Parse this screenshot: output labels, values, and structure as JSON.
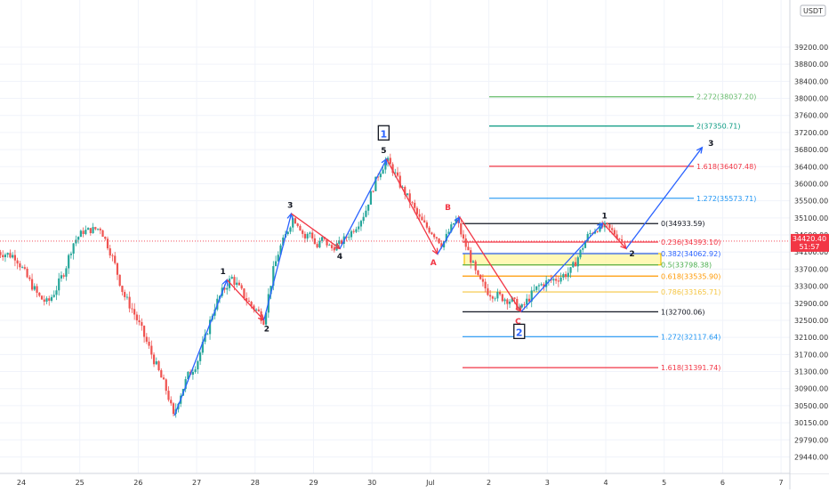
{
  "chart_data": {
    "type": "candlestick",
    "instrument_quote": "USDT",
    "x_tick_labels": [
      "24",
      "25",
      "26",
      "27",
      "28",
      "29",
      "30",
      "Jul",
      "2",
      "3",
      "4",
      "5",
      "6",
      "7"
    ],
    "y_tick_labels": [
      39200,
      38800,
      38400,
      38000,
      37600,
      37200,
      36800,
      36400,
      36000,
      35500,
      35100,
      34600,
      34100,
      33700,
      33300,
      32900,
      32500,
      32100,
      31700,
      31300,
      30900,
      30500,
      30150,
      29790,
      29440
    ],
    "y_tick_display": [
      "39200.00",
      "38800.00",
      "38400.00",
      "38000.00",
      "37600.00",
      "37200.00",
      "36800.00",
      "36400.00",
      "36000.00",
      "35500.00",
      "35100.00",
      "34600.00",
      "34100.00",
      "33700.00",
      "33300.00",
      "32900.00",
      "32500.00",
      "32100.00",
      "31700.00",
      "31300.00",
      "30900.00",
      "30500.00",
      "30150.00",
      "29790.00",
      "29440.00"
    ],
    "ylim": [
      29150,
      39280
    ],
    "xlim": [
      23.6,
      31.8
    ],
    "current_price": {
      "value": 34420.4,
      "label": "34420.40",
      "countdown": "51:57",
      "color": "#f23645"
    },
    "candle_colors": {
      "up": "#26a69a",
      "down": "#ef5350"
    },
    "price_path": [
      [
        23.6,
        34100
      ],
      [
        23.9,
        34000
      ],
      [
        24.1,
        33500
      ],
      [
        24.3,
        33050
      ],
      [
        24.45,
        32900
      ],
      [
        24.6,
        33250
      ],
      [
        24.75,
        33700
      ],
      [
        24.9,
        34400
      ],
      [
        25.05,
        34700
      ],
      [
        25.2,
        34750
      ],
      [
        25.35,
        34800
      ],
      [
        25.5,
        34200
      ],
      [
        25.6,
        33800
      ],
      [
        25.75,
        33100
      ],
      [
        25.9,
        32750
      ],
      [
        26.05,
        32300
      ],
      [
        26.2,
        31800
      ],
      [
        26.35,
        31300
      ],
      [
        26.5,
        30800
      ],
      [
        26.6,
        30250
      ],
      [
        26.7,
        30700
      ],
      [
        26.85,
        31200
      ],
      [
        27.0,
        31500
      ],
      [
        27.15,
        32100
      ],
      [
        27.3,
        32800
      ],
      [
        27.45,
        33200
      ],
      [
        27.6,
        33500
      ],
      [
        27.75,
        33200
      ],
      [
        27.9,
        32900
      ],
      [
        28.05,
        32700
      ],
      [
        28.15,
        32500
      ],
      [
        28.3,
        33600
      ],
      [
        28.42,
        34200
      ],
      [
        28.55,
        34700
      ],
      [
        28.65,
        35100
      ],
      [
        28.75,
        34900
      ],
      [
        28.85,
        34500
      ],
      [
        28.95,
        34700
      ],
      [
        29.05,
        34200
      ],
      [
        29.15,
        34500
      ],
      [
        29.3,
        34200
      ],
      [
        29.45,
        34350
      ],
      [
        29.6,
        34600
      ],
      [
        29.75,
        34900
      ],
      [
        29.9,
        35300
      ],
      [
        30.0,
        35800
      ],
      [
        30.1,
        36200
      ],
      [
        30.2,
        36450
      ],
      [
        30.25,
        36550
      ],
      [
        30.35,
        36350
      ],
      [
        30.5,
        35900
      ],
      [
        30.65,
        35500
      ],
      [
        30.8,
        35100
      ],
      [
        30.95,
        34800
      ],
      [
        31.1,
        34550
      ],
      [
        31.2,
        34300
      ],
      [
        31.3,
        34650
      ],
      [
        31.4,
        34950
      ],
      [
        31.45,
        35050
      ],
      [
        31.55,
        34500
      ],
      [
        31.7,
        33900
      ],
      [
        31.8,
        33500
      ]
    ],
    "fib_levels_upper": [
      {
        "ratio": "2.272",
        "value": 38037.2,
        "label": "2.272(38037.20)",
        "color": "#66bb6a"
      },
      {
        "ratio": "2",
        "value": 37350.71,
        "label": "2(37350.71)",
        "color": "#089981"
      },
      {
        "ratio": "1.618",
        "value": 36407.48,
        "label": "1.618(36407.48)",
        "color": "#f23645"
      },
      {
        "ratio": "1.272",
        "value": 35573.71,
        "label": "1.272(35573.71)",
        "color": "#2196f3"
      },
      {
        "ratio": "0",
        "value": 34933.59,
        "label": "0(34933.59)",
        "color": "#131722"
      },
      {
        "ratio": "0.236",
        "value": 34393.1,
        "label": "0.236(34393.10)",
        "color": "#f23645"
      },
      {
        "ratio": "0.382",
        "value": 34062.92,
        "label": "0.382(34062.92)",
        "color": "#2962ff"
      },
      {
        "ratio": "0.5",
        "value": 33798.38,
        "label": "0.5(33798.38)",
        "color": "#4caf50"
      },
      {
        "ratio": "0.618",
        "value": 33535.9,
        "label": "0.618(33535.90)",
        "color": "#ff9800"
      },
      {
        "ratio": "0.786",
        "value": 33165.71,
        "label": "0.786(33165.71)",
        "color": "#f5c542"
      },
      {
        "ratio": "1",
        "value": 32700.06,
        "label": "1(32700.06)",
        "color": "#131722"
      }
    ],
    "fib_levels_lower": [
      {
        "ratio": "1.272",
        "value": 32117.64,
        "label": "1.272(32117.64)",
        "color": "#2196f3"
      },
      {
        "ratio": "1.618",
        "value": 31391.74,
        "label": "1.618(31391.74)",
        "color": "#f23645"
      }
    ],
    "highlight_zone": {
      "from": 33798.38,
      "to": 34062.92,
      "fill": "#fff59d",
      "stroke": "#f2c200"
    },
    "wave_lines": [
      {
        "color": "#2962ff",
        "points": [
          [
            26.62,
            30300
          ],
          [
            27.52,
            33450
          ]
        ]
      },
      {
        "color": "#f23645",
        "points": [
          [
            27.52,
            33450
          ],
          [
            28.15,
            32500
          ]
        ]
      },
      {
        "color": "#2962ff",
        "points": [
          [
            28.15,
            32500
          ],
          [
            28.62,
            35200
          ]
        ]
      },
      {
        "color": "#f23645",
        "points": [
          [
            28.62,
            35200
          ],
          [
            29.45,
            34200
          ]
        ]
      },
      {
        "color": "#2962ff",
        "points": [
          [
            29.45,
            34200
          ],
          [
            30.25,
            36580
          ]
        ]
      },
      {
        "color": "#f23645",
        "points": [
          [
            30.25,
            36580
          ],
          [
            31.12,
            34050
          ]
        ]
      },
      {
        "color": "#2962ff",
        "points": [
          [
            31.12,
            34050
          ],
          [
            31.5,
            35120
          ]
        ]
      },
      {
        "color": "#f23645",
        "points": [
          [
            31.5,
            35120
          ],
          [
            32.55,
            32700
          ]
        ]
      },
      {
        "color": "#2962ff",
        "points": [
          [
            32.55,
            32700
          ],
          [
            33.95,
            34950
          ]
        ]
      },
      {
        "color": "#f23645",
        "points": [
          [
            33.95,
            34950
          ],
          [
            34.35,
            34200
          ]
        ]
      },
      {
        "color": "#2962ff",
        "points": [
          [
            34.35,
            34200
          ],
          [
            35.65,
            36850
          ]
        ],
        "arrow": true
      }
    ],
    "wave_labels": [
      {
        "text": "1",
        "x": 27.45,
        "y": 33650,
        "color": "#131722"
      },
      {
        "text": "2",
        "x": 28.2,
        "y": 32300,
        "color": "#131722"
      },
      {
        "text": "3",
        "x": 28.6,
        "y": 35400,
        "color": "#131722"
      },
      {
        "text": "4",
        "x": 29.45,
        "y": 34000,
        "color": "#131722"
      },
      {
        "text": "5",
        "x": 30.2,
        "y": 36780,
        "color": "#131722"
      },
      {
        "text": "1",
        "x": 30.2,
        "y": 37150,
        "color": "#2962ff",
        "boxed": true
      },
      {
        "text": "A",
        "x": 31.05,
        "y": 33850,
        "color": "#f23645"
      },
      {
        "text": "B",
        "x": 31.3,
        "y": 35350,
        "color": "#f23645"
      },
      {
        "text": "C",
        "x": 32.5,
        "y": 32480,
        "color": "#f23645"
      },
      {
        "text": "2",
        "x": 32.52,
        "y": 32200,
        "color": "#2962ff",
        "boxed": true
      },
      {
        "text": "1",
        "x": 33.98,
        "y": 35150,
        "color": "#131722"
      },
      {
        "text": "2",
        "x": 34.45,
        "y": 34060,
        "color": "#131722"
      },
      {
        "text": "3",
        "x": 35.8,
        "y": 36950,
        "color": "#131722"
      }
    ]
  }
}
